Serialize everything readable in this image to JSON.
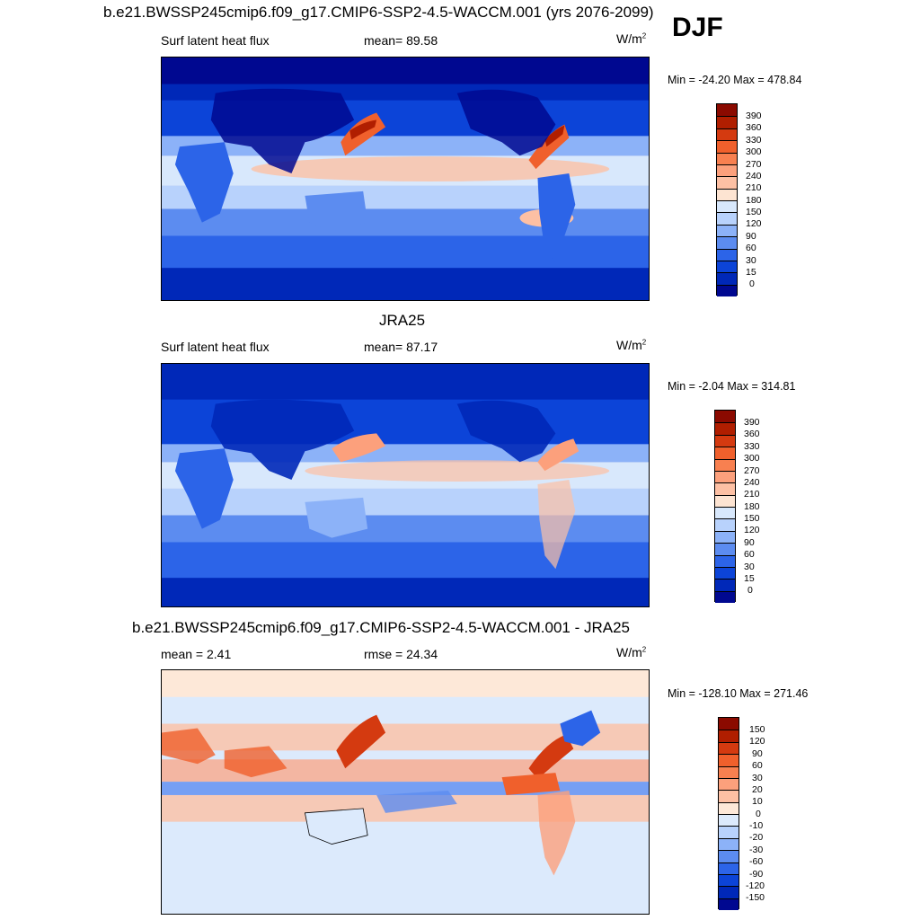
{
  "season": "DJF",
  "panels": [
    {
      "id": "model",
      "title": "b.e21.BWSSP245cmip6.f09_g17.CMIP6-SSP2-4.5-WACCM.001 (yrs 2076-2099)",
      "left_label": "Surf latent heat flux",
      "center_label": "mean=  89.58",
      "units_base": "W/m",
      "units_exp": "2",
      "minmax": "Min = -24.20 Max = 478.84",
      "colorbar": {
        "labels": [
          "390",
          "360",
          "330",
          "300",
          "270",
          "240",
          "210",
          "180",
          "150",
          "120",
          "90",
          "60",
          "30",
          "15",
          "0"
        ],
        "colors": [
          "#8b0a00",
          "#b01e00",
          "#d43a10",
          "#f0602c",
          "#f88050",
          "#fca07c",
          "#fdc0a4",
          "#fde4d2",
          "#d8e8fc",
          "#b8d2fc",
          "#8cb2f8",
          "#5c8cf0",
          "#2c64e8",
          "#0c44d8",
          "#0028b8",
          "#000890"
        ]
      }
    },
    {
      "id": "obs",
      "title": "JRA25",
      "left_label": "Surf latent heat flux",
      "center_label": "mean=  87.17",
      "units_base": "W/m",
      "units_exp": "2",
      "minmax": "Min =  -2.04 Max = 314.81",
      "colorbar": {
        "labels": [
          "390",
          "360",
          "330",
          "300",
          "270",
          "240",
          "210",
          "180",
          "150",
          "120",
          "90",
          "60",
          "30",
          "15",
          "0"
        ],
        "colors": [
          "#8b0a00",
          "#b01e00",
          "#d43a10",
          "#f0602c",
          "#f88050",
          "#fca07c",
          "#fdc0a4",
          "#fde4d2",
          "#d8e8fc",
          "#b8d2fc",
          "#8cb2f8",
          "#5c8cf0",
          "#2c64e8",
          "#0c44d8",
          "#0028b8",
          "#000890"
        ]
      }
    },
    {
      "id": "diff",
      "title": "b.e21.BWSSP245cmip6.f09_g17.CMIP6-SSP2-4.5-WACCM.001 - JRA25",
      "left_label": "mean =   2.41",
      "center_label": "rmse =  24.34",
      "units_base": "W/m",
      "units_exp": "2",
      "minmax": "Min = -128.10 Max = 271.46",
      "colorbar": {
        "labels": [
          "150",
          "120",
          "90",
          "60",
          "30",
          "20",
          "10",
          "0",
          "-10",
          "-20",
          "-30",
          "-60",
          "-90",
          "-120",
          "-150"
        ],
        "colors": [
          "#8b0a00",
          "#b01e00",
          "#d43a10",
          "#f0602c",
          "#f88050",
          "#fca07c",
          "#fdc0a4",
          "#fde8d8",
          "#dceafc",
          "#b8d2fc",
          "#8cb2f8",
          "#5c8cf0",
          "#2c64e8",
          "#0c44d8",
          "#0028b8",
          "#000890"
        ]
      }
    }
  ]
}
